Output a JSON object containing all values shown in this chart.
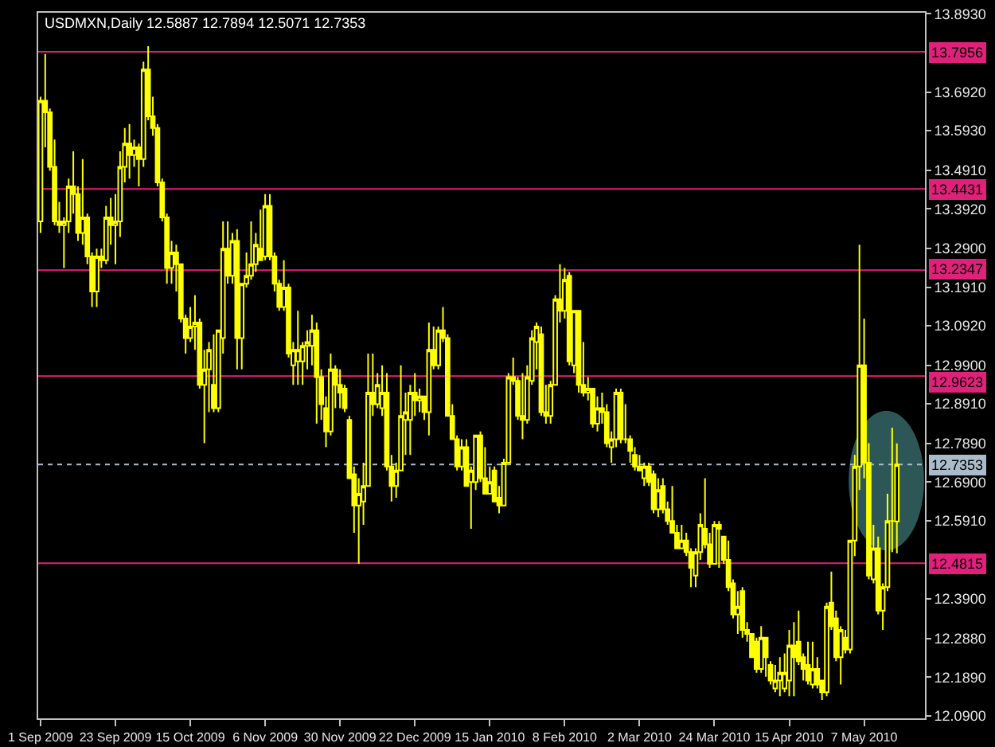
{
  "chart_data": {
    "type": "candlestick",
    "title": "USDMXN,Daily 12.5887 12.7894 12.5071 12.7353",
    "categories": [
      "1 Sep 2009",
      null,
      null,
      null,
      null,
      null,
      null,
      null,
      null,
      null,
      null,
      null,
      null,
      null,
      null,
      null,
      "23 Sep 2009",
      null,
      null,
      null,
      null,
      null,
      null,
      null,
      null,
      null,
      null,
      null,
      null,
      null,
      null,
      null,
      "15 Oct 2009",
      null,
      null,
      null,
      null,
      null,
      null,
      null,
      null,
      null,
      null,
      null,
      null,
      null,
      null,
      null,
      "6 Nov 2009",
      null,
      null,
      null,
      null,
      null,
      null,
      null,
      null,
      null,
      null,
      null,
      null,
      null,
      null,
      null,
      "30 Nov 2009",
      null,
      null,
      null,
      null,
      null,
      null,
      null,
      null,
      null,
      null,
      null,
      null,
      null,
      null,
      null,
      "22 Dec 2009",
      null,
      null,
      null,
      null,
      null,
      null,
      null,
      null,
      null,
      null,
      null,
      null,
      null,
      null,
      null,
      "15 Jan 2010",
      null,
      null,
      null,
      null,
      null,
      null,
      null,
      null,
      null,
      null,
      null,
      null,
      null,
      null,
      null,
      "8 Feb 2010",
      null,
      null,
      null,
      null,
      null,
      null,
      null,
      null,
      null,
      null,
      null,
      null,
      null,
      null,
      null,
      "2 Mar 2010",
      null,
      null,
      null,
      null,
      null,
      null,
      null,
      null,
      null,
      null,
      null,
      null,
      null,
      null,
      null,
      "24 Mar 2010",
      null,
      null,
      null,
      null,
      null,
      null,
      null,
      null,
      null,
      null,
      null,
      null,
      null,
      null,
      null,
      "15 Apr 2010",
      null,
      null,
      null,
      null,
      null,
      null,
      null,
      null,
      null,
      null,
      null,
      null,
      null,
      null,
      null,
      "7 May 2010",
      null,
      null,
      null,
      null,
      null,
      null,
      null
    ],
    "color": "#ffff00",
    "ohlc": [
      [
        13.36,
        13.68,
        13.33,
        13.67
      ],
      [
        13.67,
        13.79,
        13.55,
        13.64
      ],
      [
        13.64,
        13.65,
        13.49,
        13.5
      ],
      [
        13.5,
        13.57,
        13.35,
        13.36
      ],
      [
        13.36,
        13.41,
        13.33,
        13.35
      ],
      [
        13.35,
        13.37,
        13.24,
        13.36
      ],
      [
        13.36,
        13.47,
        13.33,
        13.45
      ],
      [
        13.45,
        13.54,
        13.38,
        13.43
      ],
      [
        13.43,
        13.45,
        13.31,
        13.33
      ],
      [
        13.33,
        13.52,
        13.3,
        13.37
      ],
      [
        13.37,
        13.38,
        13.25,
        13.27
      ],
      [
        13.27,
        13.28,
        13.14,
        13.18
      ],
      [
        13.18,
        13.29,
        13.14,
        13.27
      ],
      [
        13.27,
        13.29,
        13.24,
        13.26
      ],
      [
        13.26,
        13.4,
        13.25,
        13.37
      ],
      [
        13.37,
        13.42,
        13.3,
        13.35
      ],
      [
        13.35,
        13.43,
        13.25,
        13.36
      ],
      [
        13.36,
        13.54,
        13.32,
        13.5
      ],
      [
        13.5,
        13.6,
        13.46,
        13.56
      ],
      [
        13.56,
        13.61,
        13.47,
        13.53
      ],
      [
        13.53,
        13.57,
        13.5,
        13.55
      ],
      [
        13.55,
        13.56,
        13.45,
        13.52
      ],
      [
        13.52,
        13.77,
        13.5,
        13.75
      ],
      [
        13.75,
        13.81,
        13.62,
        13.63
      ],
      [
        13.63,
        13.68,
        13.58,
        13.6
      ],
      [
        13.6,
        13.61,
        13.45,
        13.46
      ],
      [
        13.46,
        13.47,
        13.36,
        13.37
      ],
      [
        13.37,
        13.38,
        13.2,
        13.24
      ],
      [
        13.24,
        13.31,
        13.2,
        13.28
      ],
      [
        13.28,
        13.3,
        13.18,
        13.25
      ],
      [
        13.25,
        13.25,
        13.1,
        13.11
      ],
      [
        13.11,
        13.12,
        13.02,
        13.06
      ],
      [
        13.06,
        13.14,
        13.05,
        13.09
      ],
      [
        13.09,
        13.17,
        13.03,
        13.1
      ],
      [
        13.1,
        13.11,
        12.93,
        12.94
      ],
      [
        12.94,
        13.03,
        12.79,
        12.98
      ],
      [
        12.98,
        13.05,
        12.87,
        13.03
      ],
      [
        12.94,
        13.07,
        12.87,
        12.88
      ],
      [
        12.88,
        13.08,
        12.87,
        13.08
      ],
      [
        13.06,
        13.36,
        13.02,
        13.29
      ],
      [
        13.29,
        13.36,
        13.2,
        13.22
      ],
      [
        13.22,
        13.33,
        13.2,
        13.31
      ],
      [
        13.31,
        13.34,
        12.98,
        13.06
      ],
      [
        13.06,
        13.2,
        12.98,
        13.2
      ],
      [
        13.2,
        13.28,
        13.19,
        13.22
      ],
      [
        13.22,
        13.36,
        13.21,
        13.25
      ],
      [
        13.25,
        13.33,
        13.23,
        13.3
      ],
      [
        13.29,
        13.39,
        13.26,
        13.26
      ],
      [
        13.27,
        13.43,
        13.26,
        13.4
      ],
      [
        13.4,
        13.43,
        13.26,
        13.27
      ],
      [
        13.27,
        13.28,
        13.18,
        13.2
      ],
      [
        13.2,
        13.21,
        13.13,
        13.14
      ],
      [
        13.14,
        13.26,
        13.13,
        13.19
      ],
      [
        13.19,
        13.2,
        13.01,
        13.02
      ],
      [
        12.99,
        13.05,
        12.94,
        13.03
      ],
      [
        13.0,
        13.13,
        12.94,
        13.03
      ],
      [
        13.0,
        13.05,
        12.94,
        13.04
      ],
      [
        13.04,
        13.08,
        12.98,
        13.05
      ],
      [
        13.04,
        13.12,
        12.99,
        13.08
      ],
      [
        13.08,
        13.1,
        12.84,
        12.96
      ],
      [
        12.96,
        12.98,
        12.85,
        12.89
      ],
      [
        12.88,
        12.91,
        12.78,
        12.82
      ],
      [
        12.82,
        13.02,
        12.81,
        12.98
      ],
      [
        12.98,
        12.99,
        12.88,
        12.94
      ],
      [
        12.94,
        12.98,
        12.88,
        12.92
      ],
      [
        12.93,
        12.94,
        12.87,
        12.88
      ],
      [
        12.85,
        12.86,
        12.7,
        12.7
      ],
      [
        12.71,
        12.73,
        12.56,
        12.63
      ],
      [
        12.63,
        12.7,
        12.48,
        12.66
      ],
      [
        12.64,
        12.74,
        12.58,
        12.68
      ],
      [
        12.68,
        13.02,
        12.68,
        12.92
      ],
      [
        12.92,
        13.02,
        12.86,
        12.89
      ],
      [
        12.89,
        12.97,
        12.88,
        12.94
      ],
      [
        12.88,
        12.99,
        12.86,
        12.92
      ],
      [
        12.92,
        12.97,
        12.72,
        12.73
      ],
      [
        12.73,
        12.76,
        12.64,
        12.68
      ],
      [
        12.68,
        12.74,
        12.65,
        12.72
      ],
      [
        12.72,
        12.99,
        12.72,
        12.86
      ],
      [
        12.85,
        12.92,
        12.76,
        12.87
      ],
      [
        12.85,
        12.94,
        12.76,
        12.92
      ],
      [
        12.92,
        12.97,
        12.86,
        12.9
      ],
      [
        12.9,
        12.93,
        12.87,
        12.91
      ],
      [
        12.91,
        12.91,
        12.85,
        12.87
      ],
      [
        12.87,
        13.1,
        12.81,
        13.03
      ],
      [
        13.03,
        13.09,
        12.98,
        12.99
      ],
      [
        12.99,
        13.09,
        12.98,
        13.08
      ],
      [
        13.08,
        13.14,
        13.05,
        13.06
      ],
      [
        13.06,
        13.07,
        12.86,
        12.86
      ],
      [
        12.86,
        12.89,
        12.8,
        12.8
      ],
      [
        12.8,
        12.81,
        12.72,
        12.73
      ],
      [
        12.73,
        12.8,
        12.72,
        12.78
      ],
      [
        12.78,
        12.8,
        12.68,
        12.68
      ],
      [
        12.69,
        12.73,
        12.57,
        12.72
      ],
      [
        12.69,
        12.81,
        12.67,
        12.81
      ],
      [
        12.81,
        12.82,
        12.69,
        12.7
      ],
      [
        12.7,
        12.78,
        12.66,
        12.66
      ],
      [
        12.66,
        12.73,
        12.66,
        12.69
      ],
      [
        12.72,
        12.73,
        12.64,
        12.64
      ],
      [
        12.65,
        12.68,
        12.61,
        12.63
      ],
      [
        12.63,
        12.75,
        12.63,
        12.74
      ],
      [
        12.74,
        12.97,
        12.74,
        12.96
      ],
      [
        12.96,
        13.01,
        12.94,
        12.95
      ],
      [
        12.95,
        12.96,
        12.85,
        12.86
      ],
      [
        12.86,
        12.97,
        12.8,
        12.85
      ],
      [
        12.85,
        12.99,
        12.84,
        12.96
      ],
      [
        12.95,
        13.08,
        12.94,
        13.06
      ],
      [
        13.05,
        13.1,
        12.98,
        13.09
      ],
      [
        13.07,
        13.09,
        12.86,
        12.87
      ],
      [
        12.87,
        12.94,
        12.84,
        12.86
      ],
      [
        12.86,
        12.95,
        12.84,
        12.94
      ],
      [
        12.94,
        13.17,
        12.94,
        13.16
      ],
      [
        13.16,
        13.25,
        13.1,
        13.13
      ],
      [
        13.13,
        13.24,
        13.11,
        13.21
      ],
      [
        13.22,
        13.23,
        12.99,
        13.0
      ],
      [
        12.99,
        13.13,
        12.97,
        13.13
      ],
      [
        13.13,
        13.13,
        12.92,
        12.94
      ],
      [
        12.94,
        13.05,
        12.91,
        12.92
      ],
      [
        12.92,
        12.96,
        12.9,
        12.93
      ],
      [
        12.93,
        12.93,
        12.83,
        12.84
      ],
      [
        12.84,
        12.91,
        12.82,
        12.88
      ],
      [
        12.88,
        12.92,
        12.84,
        12.87
      ],
      [
        12.87,
        12.89,
        12.78,
        12.79
      ],
      [
        12.78,
        12.82,
        12.74,
        12.8
      ],
      [
        12.8,
        12.93,
        12.78,
        12.92
      ],
      [
        12.92,
        12.93,
        12.79,
        12.8
      ],
      [
        12.8,
        12.89,
        12.79,
        12.8
      ],
      [
        12.8,
        12.81,
        12.74,
        12.77
      ],
      [
        12.76,
        12.78,
        12.72,
        12.73
      ],
      [
        12.73,
        12.76,
        12.72,
        12.72
      ],
      [
        12.7,
        12.74,
        12.68,
        12.73
      ],
      [
        12.73,
        12.74,
        12.68,
        12.69
      ],
      [
        12.71,
        12.72,
        12.61,
        12.62
      ],
      [
        12.62,
        12.7,
        12.6,
        12.67
      ],
      [
        12.68,
        12.7,
        12.61,
        12.62
      ],
      [
        12.62,
        12.64,
        12.58,
        12.59
      ],
      [
        12.59,
        12.68,
        12.56,
        12.56
      ],
      [
        12.56,
        12.58,
        12.52,
        12.52
      ],
      [
        12.52,
        12.58,
        12.52,
        12.54
      ],
      [
        12.54,
        12.56,
        12.5,
        12.51
      ],
      [
        12.51,
        12.52,
        12.42,
        12.47
      ],
      [
        12.45,
        12.52,
        12.42,
        12.51
      ],
      [
        12.51,
        12.61,
        12.49,
        12.58
      ],
      [
        12.57,
        12.7,
        12.52,
        12.53
      ],
      [
        12.53,
        12.56,
        12.47,
        12.48
      ],
      [
        12.48,
        12.59,
        12.48,
        12.58
      ],
      [
        12.58,
        12.59,
        12.47,
        12.57
      ],
      [
        12.55,
        12.55,
        12.48,
        12.49
      ],
      [
        12.49,
        12.54,
        12.41,
        12.42
      ],
      [
        12.43,
        12.44,
        12.34,
        12.35
      ],
      [
        12.35,
        12.41,
        12.3,
        12.37
      ],
      [
        12.41,
        12.42,
        12.29,
        12.31
      ],
      [
        12.31,
        12.33,
        12.28,
        12.3
      ],
      [
        12.3,
        12.3,
        12.24,
        12.24
      ],
      [
        12.28,
        12.29,
        12.2,
        12.21
      ],
      [
        12.21,
        12.32,
        12.2,
        12.29
      ],
      [
        12.29,
        12.29,
        12.19,
        12.24
      ],
      [
        12.22,
        12.23,
        12.17,
        12.18
      ],
      [
        12.16,
        12.22,
        12.15,
        12.18
      ],
      [
        12.18,
        12.24,
        12.14,
        12.2
      ],
      [
        12.16,
        12.25,
        12.15,
        12.2
      ],
      [
        12.18,
        12.31,
        12.14,
        12.27
      ],
      [
        12.27,
        12.33,
        12.14,
        12.24
      ],
      [
        12.28,
        12.36,
        12.22,
        12.23
      ],
      [
        12.24,
        12.25,
        12.18,
        12.21
      ],
      [
        12.22,
        12.28,
        12.17,
        12.18
      ],
      [
        12.17,
        12.28,
        12.16,
        12.21
      ],
      [
        12.21,
        12.24,
        12.16,
        12.17
      ],
      [
        12.18,
        12.18,
        12.13,
        12.15
      ],
      [
        12.15,
        12.38,
        12.14,
        12.37
      ],
      [
        12.38,
        12.46,
        12.31,
        12.32
      ],
      [
        12.34,
        12.36,
        12.23,
        12.24
      ],
      [
        12.24,
        12.32,
        12.17,
        12.31
      ],
      [
        12.29,
        12.31,
        12.25,
        12.26
      ],
      [
        12.26,
        12.54,
        12.25,
        12.54
      ],
      [
        12.54,
        12.76,
        12.5,
        12.73
      ],
      [
        12.73,
        13.3,
        12.67,
        12.99
      ],
      [
        12.99,
        13.11,
        12.7,
        12.74
      ],
      [
        12.74,
        12.79,
        12.44,
        12.45
      ],
      [
        12.44,
        12.58,
        12.43,
        12.52
      ],
      [
        12.52,
        12.55,
        12.35,
        12.36
      ],
      [
        12.36,
        12.43,
        12.31,
        12.42
      ],
      [
        12.42,
        12.66,
        12.41,
        12.59
      ],
      [
        12.59,
        12.83,
        12.51,
        12.59
      ],
      [
        12.5887,
        12.7894,
        12.5071,
        12.7353
      ]
    ],
    "ylim": [
      12.083,
      13.896
    ],
    "yticks": [
      {
        "value": 13.893,
        "label": "13.8930"
      },
      {
        "value": 13.692,
        "label": "13.6920"
      },
      {
        "value": 13.593,
        "label": "13.5930"
      },
      {
        "value": 13.491,
        "label": "13.4910"
      },
      {
        "value": 13.392,
        "label": "13.3920"
      },
      {
        "value": 13.29,
        "label": "13.2900"
      },
      {
        "value": 13.191,
        "label": "13.1910"
      },
      {
        "value": 13.092,
        "label": "13.0920"
      },
      {
        "value": 12.99,
        "label": "12.9900"
      },
      {
        "value": 12.891,
        "label": "12.8910"
      },
      {
        "value": 12.789,
        "label": "12.7890"
      },
      {
        "value": 12.69,
        "label": "12.6900"
      },
      {
        "value": 12.591,
        "label": "12.5910"
      },
      {
        "value": 12.39,
        "label": "12.3900"
      },
      {
        "value": 12.288,
        "label": "12.2880"
      },
      {
        "value": 12.189,
        "label": "12.1890"
      },
      {
        "value": 12.09,
        "label": "12.0900"
      }
    ],
    "ref_lines": [
      {
        "axis": "y",
        "value": 13.7956,
        "label": "13.7956",
        "color": "#e0207a"
      },
      {
        "axis": "y",
        "value": 13.4431,
        "label": "13.4431",
        "color": "#e0207a"
      },
      {
        "axis": "y",
        "value": 13.2347,
        "label": "13.2347",
        "color": "#e0207a"
      },
      {
        "axis": "y",
        "value": 12.9623,
        "label": "12.9623",
        "color": "#e0207a"
      },
      {
        "axis": "y",
        "value": 12.7353,
        "label": "12.7353",
        "color": "#aabccb",
        "line_style": "dotted"
      },
      {
        "axis": "y",
        "value": 12.4815,
        "label": "12.4815",
        "color": "#e0207a"
      }
    ]
  }
}
